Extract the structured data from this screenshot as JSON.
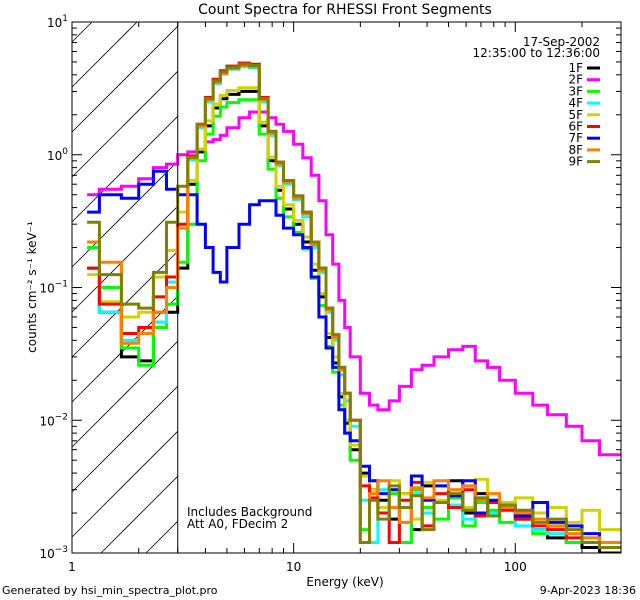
{
  "chart_data": {
    "type": "line",
    "title": "Count Spectra for RHESSI Front Segments",
    "xlabel": "Energy (keV)",
    "ylabel": "counts cm⁻² s⁻¹ keV⁻¹",
    "xscale": "log",
    "yscale": "log",
    "xlim": [
      1,
      300
    ],
    "ylim": [
      0.001,
      10
    ],
    "xticks": [
      {
        "value": 1,
        "label": "1"
      },
      {
        "value": 10,
        "label": "10"
      },
      {
        "value": 100,
        "label": "100"
      }
    ],
    "yticks": [
      {
        "value": 10,
        "base": "10",
        "exp": "1"
      },
      {
        "value": 1,
        "base": "10",
        "exp": "0"
      },
      {
        "value": 0.1,
        "base": "10",
        "exp": "−1"
      },
      {
        "value": 0.01,
        "base": "10",
        "exp": "−2"
      },
      {
        "value": 0.001,
        "base": "10",
        "exp": "−3"
      }
    ],
    "shaded_region_keV": [
      1,
      3
    ],
    "legend_placement": "top-right",
    "legend_header": [
      "17-Sep-2002",
      "12:35:00 to 12:36:00"
    ],
    "annotations": [
      "Includes Background",
      "Att A0, FDecim 2"
    ],
    "energy_edges": [
      1.17,
      1.33,
      1.67,
      2.0,
      2.33,
      2.67,
      3.0,
      3.33,
      3.67,
      4.0,
      4.33,
      4.67,
      5.0,
      5.67,
      6.33,
      7.0,
      7.67,
      8.33,
      9,
      10,
      11,
      12,
      13,
      14,
      15,
      16,
      17,
      18,
      20,
      22,
      24,
      27,
      30,
      34,
      38,
      43,
      50,
      58,
      66,
      75,
      85,
      100,
      120,
      140,
      170,
      200,
      240,
      300
    ],
    "series": [
      {
        "name": "1F",
        "color": "#000000",
        "values": [
          0.14,
          0.065,
          0.03,
          0.028,
          0.065,
          0.065,
          0.14,
          0.6,
          1.05,
          1.65,
          2.25,
          2.64,
          2.85,
          3.0,
          3.0,
          1.65,
          0.9,
          0.54,
          0.39,
          0.3,
          0.22,
          0.135,
          0.085,
          0.042,
          0.027,
          0.015,
          0.0095,
          0.006,
          0.004,
          0.003,
          0.0025,
          0.0018,
          0.0028,
          0.0015,
          0.0032,
          0.0024,
          0.0035,
          0.002,
          0.0028,
          0.0019,
          0.0022,
          0.0018,
          0.0015,
          0.0013,
          0.0012,
          0.0011,
          0.001
        ]
      },
      {
        "name": "2F",
        "color": "#ff00ff",
        "values": [
          0.5,
          0.55,
          0.58,
          0.66,
          0.8,
          0.85,
          1.0,
          1.05,
          1.1,
          1.25,
          1.3,
          1.4,
          1.6,
          1.9,
          2.1,
          2.1,
          1.9,
          1.7,
          1.5,
          1.2,
          0.95,
          0.7,
          0.45,
          0.25,
          0.15,
          0.08,
          0.05,
          0.03,
          0.016,
          0.013,
          0.012,
          0.014,
          0.018,
          0.024,
          0.026,
          0.03,
          0.034,
          0.036,
          0.028,
          0.025,
          0.02,
          0.016,
          0.013,
          0.011,
          0.009,
          0.007,
          0.0055
        ]
      },
      {
        "name": "3F",
        "color": "#00ff00",
        "values": [
          0.2,
          0.1,
          0.035,
          0.026,
          0.05,
          0.075,
          0.155,
          0.3,
          0.9,
          1.43,
          1.95,
          2.29,
          2.47,
          2.6,
          2.6,
          1.43,
          0.78,
          0.47,
          0.34,
          0.26,
          0.195,
          0.117,
          0.073,
          0.036,
          0.023,
          0.013,
          0.008,
          0.005,
          0.0015,
          0.0035,
          0.002,
          0.0028,
          0.0012,
          0.003,
          0.0022,
          0.0018,
          0.0026,
          0.0016,
          0.0024,
          0.0021,
          0.0017,
          0.0019,
          0.0014,
          0.0016,
          0.0012,
          0.0013,
          0.0011
        ]
      },
      {
        "name": "4F",
        "color": "#00ffff",
        "values": [
          0.14,
          0.065,
          0.04,
          0.045,
          0.055,
          0.11,
          0.3,
          0.92,
          1.6,
          2.5,
          3.45,
          4.05,
          4.4,
          4.6,
          4.5,
          2.5,
          1.4,
          0.83,
          0.6,
          0.46,
          0.34,
          0.2,
          0.13,
          0.065,
          0.04,
          0.022,
          0.014,
          0.009,
          0.0025,
          0.0012,
          0.003,
          0.0022,
          0.0017,
          0.0028,
          0.002,
          0.0032,
          0.0023,
          0.0018,
          0.0026,
          0.002,
          0.0024,
          0.0016,
          0.0015,
          0.0014,
          0.0013,
          0.0012,
          0.0011
        ]
      },
      {
        "name": "5F",
        "color": "#d2d200",
        "values": [
          0.125,
          0.078,
          0.06,
          0.065,
          0.12,
          0.19,
          0.37,
          0.64,
          1.1,
          1.8,
          2.4,
          2.8,
          3.05,
          3.2,
          3.2,
          1.76,
          0.96,
          0.58,
          0.42,
          0.32,
          0.24,
          0.15,
          0.09,
          0.045,
          0.03,
          0.016,
          0.01,
          0.0065,
          0.0038,
          0.003,
          0.0022,
          0.0035,
          0.0028,
          0.0018,
          0.0034,
          0.0025,
          0.003,
          0.0022,
          0.0036,
          0.0028,
          0.0024,
          0.0026,
          0.002,
          0.0022,
          0.0017,
          0.0021,
          0.0015
        ]
      },
      {
        "name": "6F",
        "color": "#ff0000",
        "values": [
          0.14,
          0.075,
          0.045,
          0.05,
          0.085,
          0.12,
          0.3,
          0.98,
          1.7,
          2.7,
          3.7,
          4.3,
          4.65,
          4.9,
          4.8,
          2.7,
          1.5,
          0.88,
          0.64,
          0.49,
          0.37,
          0.22,
          0.14,
          0.07,
          0.044,
          0.025,
          0.016,
          0.01,
          0.0032,
          0.0026,
          0.002,
          0.0012,
          0.0025,
          0.0034,
          0.0016,
          0.0028,
          0.0022,
          0.003,
          0.0019,
          0.0024,
          0.0021,
          0.0018,
          0.0016,
          0.0015,
          0.0013,
          0.0012,
          0.0011
        ]
      },
      {
        "name": "7F",
        "color": "#0000ff",
        "values": [
          0.37,
          0.5,
          0.47,
          0.6,
          0.75,
          0.55,
          0.5,
          0.5,
          0.3,
          0.2,
          0.13,
          0.11,
          0.2,
          0.3,
          0.42,
          0.45,
          0.45,
          0.35,
          0.28,
          0.25,
          0.2,
          0.12,
          0.06,
          0.035,
          0.025,
          0.012,
          0.008,
          0.007,
          0.0045,
          0.0035,
          0.0028,
          0.003,
          0.0022,
          0.0038,
          0.0025,
          0.0032,
          0.0027,
          0.0035,
          0.002,
          0.0025,
          0.0022,
          0.0019,
          0.0024,
          0.0017,
          0.0016,
          0.0014,
          0.0012
        ]
      },
      {
        "name": "8F",
        "color": "#ff8000",
        "values": [
          0.22,
          0.155,
          0.038,
          0.045,
          0.065,
          0.1,
          0.28,
          0.94,
          1.65,
          2.6,
          3.5,
          4.1,
          4.45,
          4.7,
          4.6,
          2.6,
          1.45,
          0.85,
          0.62,
          0.47,
          0.36,
          0.21,
          0.135,
          0.068,
          0.042,
          0.024,
          0.016,
          0.01,
          0.0012,
          0.0028,
          0.0035,
          0.0022,
          0.0017,
          0.0031,
          0.0026,
          0.0035,
          0.003,
          0.0032,
          0.0025,
          0.0028,
          0.0022,
          0.002,
          0.0018,
          0.0016,
          0.0014,
          0.0013,
          0.0012
        ]
      },
      {
        "name": "9F",
        "color": "#808000",
        "values": [
          0.31,
          0.125,
          0.075,
          0.07,
          0.13,
          0.31,
          0.58,
          0.96,
          1.7,
          2.65,
          3.6,
          4.2,
          4.55,
          4.8,
          4.7,
          2.65,
          1.5,
          0.88,
          0.64,
          0.49,
          0.37,
          0.22,
          0.14,
          0.07,
          0.044,
          0.025,
          0.016,
          0.01,
          0.0012,
          0.0025,
          0.0018,
          0.0032,
          0.0022,
          0.0027,
          0.0015,
          0.0024,
          0.0028,
          0.0021,
          0.0026,
          0.0019,
          0.0023,
          0.0021,
          0.0017,
          0.0018,
          0.0015,
          0.0012,
          0.0011
        ]
      }
    ]
  },
  "footer": {
    "generated_by": "Generated by hsi_min_spectra_plot.pro",
    "date": "9-Apr-2023 18:36"
  }
}
